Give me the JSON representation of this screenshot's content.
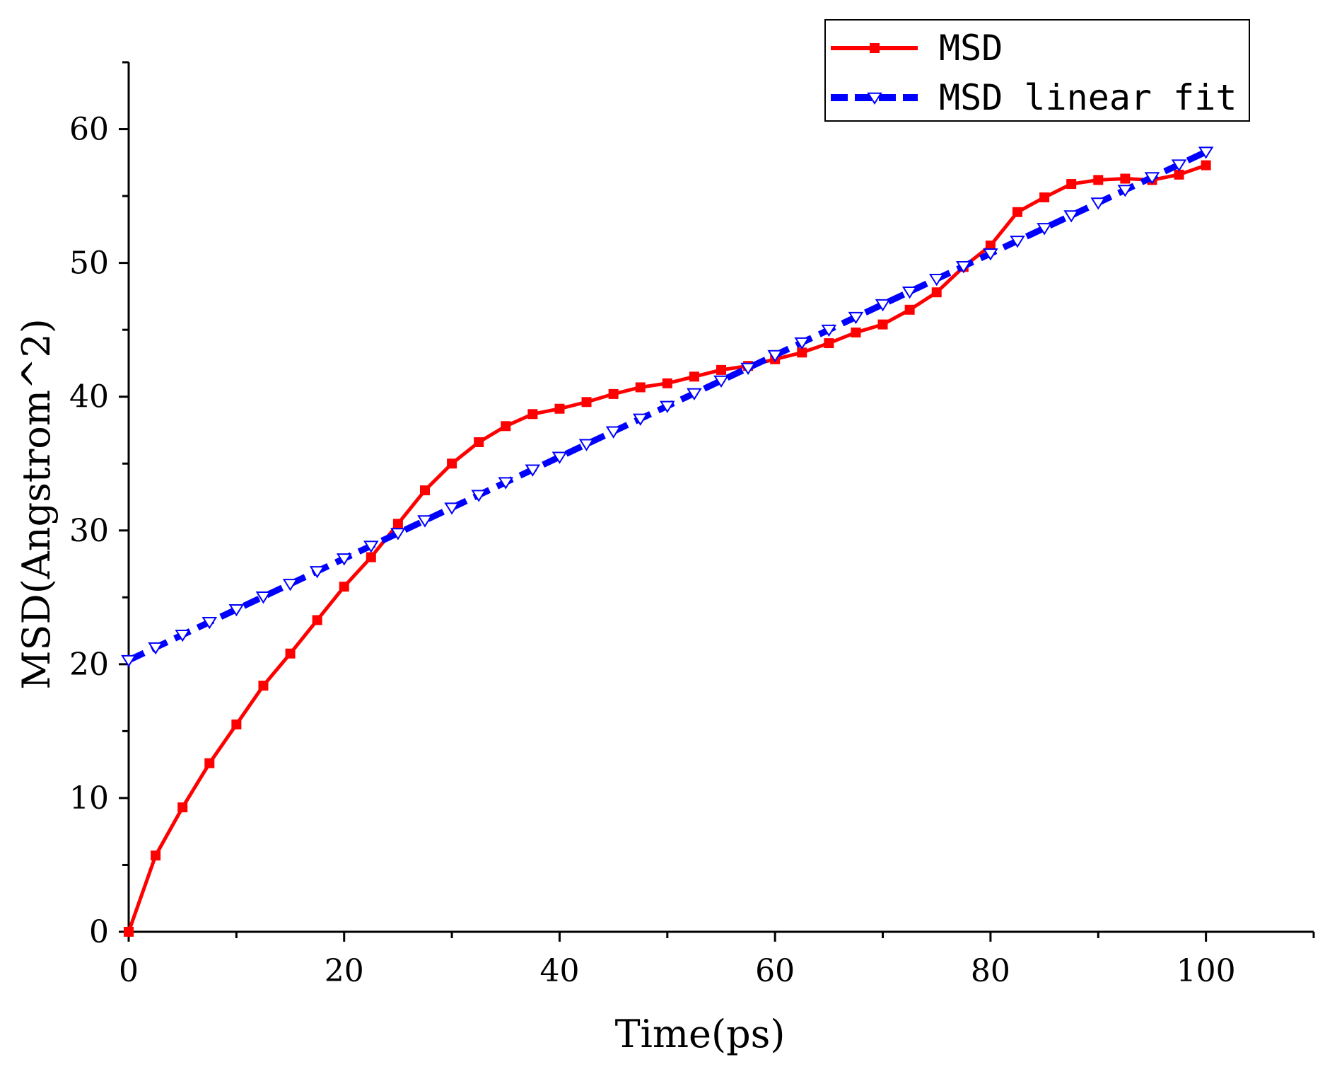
{
  "chart_data": {
    "type": "line",
    "title": "",
    "xlabel": "Time(ps)",
    "ylabel": "MSD(Angstrom^2)",
    "xlim": [
      0,
      110
    ],
    "ylim": [
      0,
      65
    ],
    "xticks": [
      0,
      20,
      40,
      60,
      80,
      100
    ],
    "yticks": [
      0,
      10,
      20,
      30,
      40,
      50,
      60
    ],
    "xtick_labels": [
      "0",
      "20",
      "40",
      "60",
      "80",
      "100"
    ],
    "ytick_labels": [
      "0",
      "10",
      "20",
      "30",
      "40",
      "50",
      "60"
    ],
    "x_minor_step": 10,
    "y_minor_step": 5,
    "grid": false,
    "legend_position": "top-right",
    "series": [
      {
        "name": "MSD",
        "color": "#ff0000",
        "line_style": "solid",
        "marker": "square",
        "x": [
          0,
          2.5,
          5,
          7.5,
          10,
          12.5,
          15,
          17.5,
          20,
          22.5,
          25,
          27.5,
          30,
          32.5,
          35,
          37.5,
          40,
          42.5,
          45,
          47.5,
          50,
          52.5,
          55,
          57.5,
          60,
          62.5,
          65,
          67.5,
          70,
          72.5,
          75,
          77.5,
          80,
          82.5,
          85,
          87.5,
          90,
          92.5,
          95,
          97.5,
          100
        ],
        "values": [
          0,
          5.7,
          9.3,
          12.6,
          15.5,
          18.4,
          20.8,
          23.3,
          25.8,
          28.0,
          30.5,
          33.0,
          35.0,
          36.6,
          37.8,
          38.7,
          39.1,
          39.6,
          40.2,
          40.7,
          41.0,
          41.5,
          42.0,
          42.3,
          42.8,
          43.3,
          44.0,
          44.8,
          45.4,
          46.5,
          47.8,
          49.7,
          51.3,
          53.8,
          54.9,
          55.9,
          56.2,
          56.3,
          56.2,
          56.6,
          57.3
        ]
      },
      {
        "name": "MSD linear fit",
        "color": "#0000ff",
        "line_style": "dashed",
        "marker": "triangle-down",
        "x": [
          0,
          2.5,
          5,
          7.5,
          10,
          12.5,
          15,
          17.5,
          20,
          22.5,
          25,
          27.5,
          30,
          32.5,
          35,
          37.5,
          40,
          42.5,
          45,
          47.5,
          50,
          52.5,
          55,
          57.5,
          60,
          62.5,
          65,
          67.5,
          70,
          72.5,
          75,
          77.5,
          80,
          82.5,
          85,
          87.5,
          90,
          92.5,
          95,
          97.5,
          100
        ],
        "values": [
          20.3,
          21.25,
          22.2,
          23.15,
          24.1,
          25.05,
          26.0,
          26.95,
          27.9,
          28.85,
          29.8,
          30.75,
          31.7,
          32.65,
          33.6,
          34.55,
          35.5,
          36.45,
          37.4,
          38.35,
          39.3,
          40.25,
          41.2,
          42.15,
          43.1,
          44.05,
          45.0,
          45.95,
          46.9,
          47.85,
          48.8,
          49.75,
          50.7,
          51.65,
          52.6,
          53.55,
          54.5,
          55.45,
          56.4,
          57.35,
          58.3
        ]
      }
    ]
  }
}
